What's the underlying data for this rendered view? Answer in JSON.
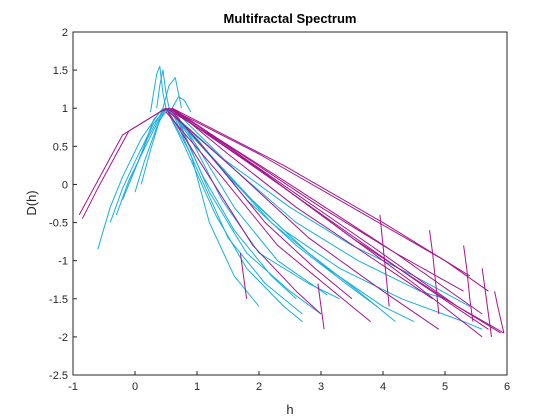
{
  "chart_data": {
    "type": "line",
    "title": "Multifractal Spectrum",
    "xlabel": "h",
    "ylabel": "D(h)",
    "xlim": [
      -1,
      6
    ],
    "ylim": [
      -2.5,
      2
    ],
    "xticks": [
      -1,
      0,
      1,
      2,
      3,
      4,
      5,
      6
    ],
    "yticks": [
      -2.5,
      -2,
      -1.5,
      -1,
      -0.5,
      0,
      0.5,
      1,
      1.5,
      2
    ],
    "grid": false,
    "legend": "none",
    "series": [
      {
        "color": "#1AAEDB",
        "lines": [
          [
            [
              -0.6,
              -0.85
            ],
            [
              -0.4,
              -0.3
            ],
            [
              -0.2,
              0.1
            ],
            [
              0.1,
              0.6
            ],
            [
              0.4,
              0.95
            ],
            [
              0.5,
              1.0
            ],
            [
              0.9,
              0.4
            ],
            [
              1.2,
              -0.5
            ],
            [
              1.6,
              -1.2
            ],
            [
              2.0,
              -1.6
            ]
          ],
          [
            [
              -0.4,
              -0.5
            ],
            [
              -0.2,
              -0.05
            ],
            [
              0.0,
              0.3
            ],
            [
              0.3,
              0.8
            ],
            [
              0.5,
              1.0
            ],
            [
              0.8,
              0.5
            ],
            [
              1.3,
              -0.4
            ],
            [
              1.8,
              -1.1
            ],
            [
              2.4,
              -1.6
            ],
            [
              2.7,
              -1.8
            ]
          ],
          [
            [
              -0.2,
              -0.2
            ],
            [
              0.0,
              0.2
            ],
            [
              0.2,
              0.6
            ],
            [
              0.45,
              0.98
            ],
            [
              0.6,
              0.95
            ],
            [
              1.0,
              0.2
            ],
            [
              1.5,
              -0.7
            ],
            [
              2.1,
              -1.3
            ],
            [
              2.7,
              -1.7
            ]
          ],
          [
            [
              0.0,
              -0.1
            ],
            [
              0.15,
              0.3
            ],
            [
              0.35,
              0.75
            ],
            [
              0.5,
              1.0
            ],
            [
              0.7,
              0.85
            ],
            [
              1.2,
              -0.1
            ],
            [
              1.8,
              -0.9
            ],
            [
              2.5,
              -1.4
            ],
            [
              3.0,
              -1.7
            ]
          ],
          [
            [
              -0.1,
              0.0
            ],
            [
              0.1,
              0.4
            ],
            [
              0.3,
              0.85
            ],
            [
              0.45,
              1.0
            ],
            [
              0.65,
              0.9
            ],
            [
              1.1,
              0.1
            ],
            [
              1.6,
              -0.6
            ],
            [
              2.2,
              -1.2
            ],
            [
              2.6,
              -1.5
            ]
          ],
          [
            [
              0.1,
              0.0
            ],
            [
              0.25,
              0.45
            ],
            [
              0.4,
              0.85
            ],
            [
              0.55,
              1.0
            ],
            [
              0.9,
              0.6
            ],
            [
              1.4,
              -0.2
            ],
            [
              2.0,
              -0.9
            ],
            [
              2.8,
              -1.3
            ],
            [
              3.3,
              -1.5
            ]
          ],
          [
            [
              -0.3,
              -0.4
            ],
            [
              -0.1,
              0.05
            ],
            [
              0.2,
              0.55
            ],
            [
              0.45,
              0.95
            ],
            [
              0.6,
              1.0
            ],
            [
              1.0,
              0.5
            ],
            [
              1.6,
              -0.3
            ],
            [
              2.3,
              -1.0
            ],
            [
              3.1,
              -1.45
            ]
          ],
          [
            [
              0.35,
              1.0
            ],
            [
              0.4,
              1.3
            ],
            [
              0.45,
              1.5
            ],
            [
              0.5,
              1.2
            ],
            [
              0.55,
              1.0
            ]
          ],
          [
            [
              0.25,
              0.95
            ],
            [
              0.3,
              1.2
            ],
            [
              0.35,
              1.45
            ],
            [
              0.4,
              1.55
            ],
            [
              0.45,
              1.2
            ],
            [
              0.5,
              1.0
            ]
          ],
          [
            [
              0.45,
              1.0
            ],
            [
              0.55,
              1.3
            ],
            [
              0.65,
              1.4
            ],
            [
              0.7,
              1.2
            ],
            [
              0.75,
              1.0
            ]
          ],
          [
            [
              0.6,
              1.0
            ],
            [
              0.7,
              1.15
            ],
            [
              0.8,
              1.1
            ],
            [
              0.9,
              0.95
            ]
          ],
          [
            [
              0.5,
              1.0
            ],
            [
              1.0,
              0.6
            ],
            [
              1.8,
              -0.2
            ],
            [
              2.6,
              -0.8
            ],
            [
              3.4,
              -1.3
            ],
            [
              3.9,
              -1.6
            ]
          ],
          [
            [
              0.55,
              1.0
            ],
            [
              1.2,
              0.4
            ],
            [
              2.0,
              -0.3
            ],
            [
              2.8,
              -0.9
            ],
            [
              3.6,
              -1.4
            ],
            [
              4.2,
              -1.8
            ]
          ],
          [
            [
              0.5,
              1.0
            ],
            [
              1.3,
              0.3
            ],
            [
              2.2,
              -0.5
            ],
            [
              3.1,
              -1.1
            ],
            [
              4.0,
              -1.6
            ],
            [
              4.5,
              -1.8
            ]
          ],
          [
            [
              0.6,
              1.0
            ],
            [
              1.6,
              0.2
            ],
            [
              2.6,
              -0.5
            ],
            [
              3.6,
              -1.0
            ],
            [
              4.6,
              -1.4
            ],
            [
              5.0,
              -1.5
            ]
          ],
          [
            [
              0.55,
              1.0
            ],
            [
              1.5,
              0.1
            ],
            [
              2.4,
              -0.6
            ],
            [
              3.3,
              -1.1
            ],
            [
              4.3,
              -1.5
            ],
            [
              5.3,
              -1.8
            ],
            [
              5.6,
              -1.9
            ]
          ],
          [
            [
              0.5,
              1.0
            ],
            [
              1.4,
              0.35
            ],
            [
              2.5,
              -0.3
            ],
            [
              3.5,
              -0.8
            ],
            [
              4.5,
              -1.2
            ],
            [
              5.4,
              -1.6
            ]
          ]
        ]
      },
      {
        "color": "#A3168C",
        "lines": [
          [
            [
              -0.9,
              -0.4
            ],
            [
              -0.7,
              -0.1
            ],
            [
              -0.2,
              0.65
            ],
            [
              0.3,
              0.9
            ],
            [
              0.5,
              1.0
            ],
            [
              1.5,
              0.5
            ],
            [
              3.0,
              -0.4
            ],
            [
              4.5,
              -1.3
            ],
            [
              5.6,
              -2.0
            ]
          ],
          [
            [
              -0.85,
              -0.45
            ],
            [
              -0.6,
              -0.05
            ],
            [
              -0.1,
              0.7
            ],
            [
              0.4,
              0.95
            ],
            [
              0.55,
              1.0
            ],
            [
              2.0,
              0.2
            ],
            [
              3.5,
              -0.7
            ],
            [
              5.0,
              -1.5
            ],
            [
              5.9,
              -1.95
            ]
          ],
          [
            [
              0.55,
              1.0
            ],
            [
              1.8,
              0.3
            ],
            [
              3.2,
              -0.5
            ],
            [
              4.6,
              -1.3
            ],
            [
              5.7,
              -1.9
            ]
          ],
          [
            [
              0.6,
              1.0
            ],
            [
              2.2,
              0.1
            ],
            [
              3.8,
              -0.8
            ],
            [
              5.2,
              -1.6
            ],
            [
              5.95,
              -1.95
            ]
          ],
          [
            [
              0.6,
              0.98
            ],
            [
              2.5,
              0.0
            ],
            [
              4.2,
              -0.9
            ],
            [
              5.6,
              -1.7
            ]
          ],
          [
            [
              0.55,
              0.95
            ],
            [
              1.6,
              0.2
            ],
            [
              2.8,
              -0.7
            ],
            [
              4.0,
              -1.4
            ],
            [
              4.9,
              -1.9
            ]
          ],
          [
            [
              0.5,
              0.95
            ],
            [
              1.4,
              0.1
            ],
            [
              2.3,
              -0.8
            ],
            [
              3.2,
              -1.4
            ],
            [
              3.8,
              -1.8
            ]
          ],
          [
            [
              0.5,
              1.0
            ],
            [
              1.2,
              0.1
            ],
            [
              1.9,
              -0.8
            ],
            [
              2.6,
              -1.4
            ],
            [
              3.0,
              -1.7
            ]
          ],
          [
            [
              0.55,
              1.0
            ],
            [
              1.3,
              0.3
            ],
            [
              2.1,
              -0.5
            ],
            [
              2.9,
              -1.1
            ],
            [
              3.5,
              -1.5
            ]
          ],
          [
            [
              0.6,
              1.0
            ],
            [
              1.5,
              0.4
            ],
            [
              2.6,
              -0.3
            ],
            [
              3.7,
              -0.9
            ],
            [
              4.8,
              -1.5
            ]
          ],
          [
            [
              0.6,
              1.0
            ],
            [
              1.8,
              0.35
            ],
            [
              3.0,
              -0.3
            ],
            [
              4.2,
              -0.9
            ],
            [
              5.3,
              -1.4
            ]
          ],
          [
            [
              0.55,
              1.0
            ],
            [
              2.0,
              0.4
            ],
            [
              3.5,
              -0.3
            ],
            [
              5.0,
              -1.0
            ],
            [
              5.7,
              -1.4
            ]
          ],
          [
            [
              0.6,
              1.0
            ],
            [
              2.4,
              0.25
            ],
            [
              4.0,
              -0.5
            ],
            [
              5.4,
              -1.2
            ]
          ],
          [
            [
              3.95,
              -0.4
            ],
            [
              4.0,
              -0.8
            ],
            [
              4.05,
              -1.2
            ],
            [
              4.1,
              -1.6
            ]
          ],
          [
            [
              4.75,
              -0.6
            ],
            [
              4.8,
              -0.9
            ],
            [
              4.85,
              -1.3
            ],
            [
              4.9,
              -1.7
            ]
          ],
          [
            [
              5.3,
              -0.8
            ],
            [
              5.35,
              -1.1
            ],
            [
              5.4,
              -1.5
            ],
            [
              5.45,
              -1.8
            ]
          ],
          [
            [
              5.6,
              -1.1
            ],
            [
              5.65,
              -1.4
            ],
            [
              5.7,
              -1.7
            ],
            [
              5.75,
              -2.0
            ]
          ],
          [
            [
              5.8,
              -1.4
            ],
            [
              5.85,
              -1.6
            ],
            [
              5.95,
              -1.95
            ]
          ],
          [
            [
              2.95,
              -1.3
            ],
            [
              3.0,
              -1.6
            ],
            [
              3.05,
              -1.9
            ]
          ],
          [
            [
              1.7,
              -0.9
            ],
            [
              1.75,
              -1.2
            ],
            [
              1.8,
              -1.5
            ]
          ]
        ]
      }
    ]
  }
}
